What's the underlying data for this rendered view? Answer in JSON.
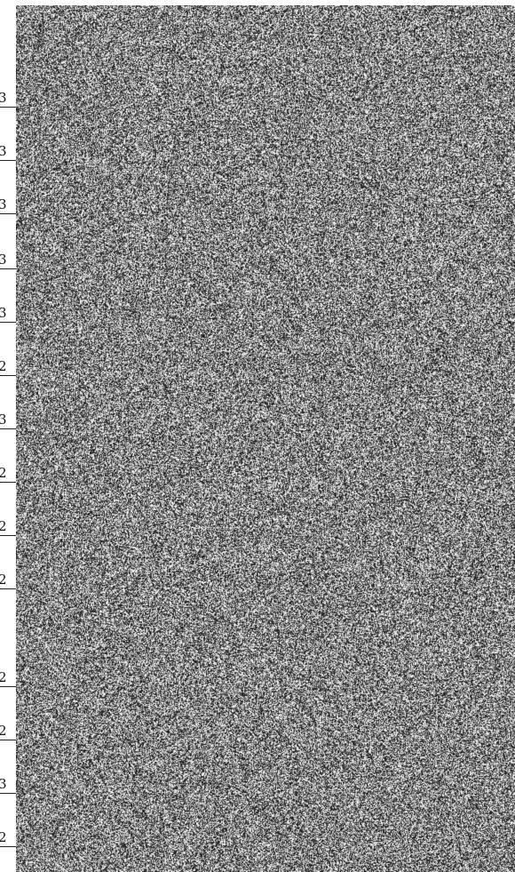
{
  "rows": [
    {
      "value": "3"
    },
    {
      "value": "3"
    },
    {
      "value": "3"
    },
    {
      "value": "3"
    },
    {
      "value": "3"
    },
    {
      "value": "2"
    },
    {
      "value": "3"
    },
    {
      "value": "2"
    },
    {
      "value": "2"
    },
    {
      "value": "2"
    },
    {
      "value": "2"
    },
    {
      "value": "2"
    },
    {
      "value": "3"
    },
    {
      "value": "2"
    }
  ],
  "colors": {
    "page_background": "#ffffff",
    "text": "#111111",
    "rule": "#222222"
  },
  "noise_panel": {
    "description": "dense black-and-white speckle texture"
  }
}
